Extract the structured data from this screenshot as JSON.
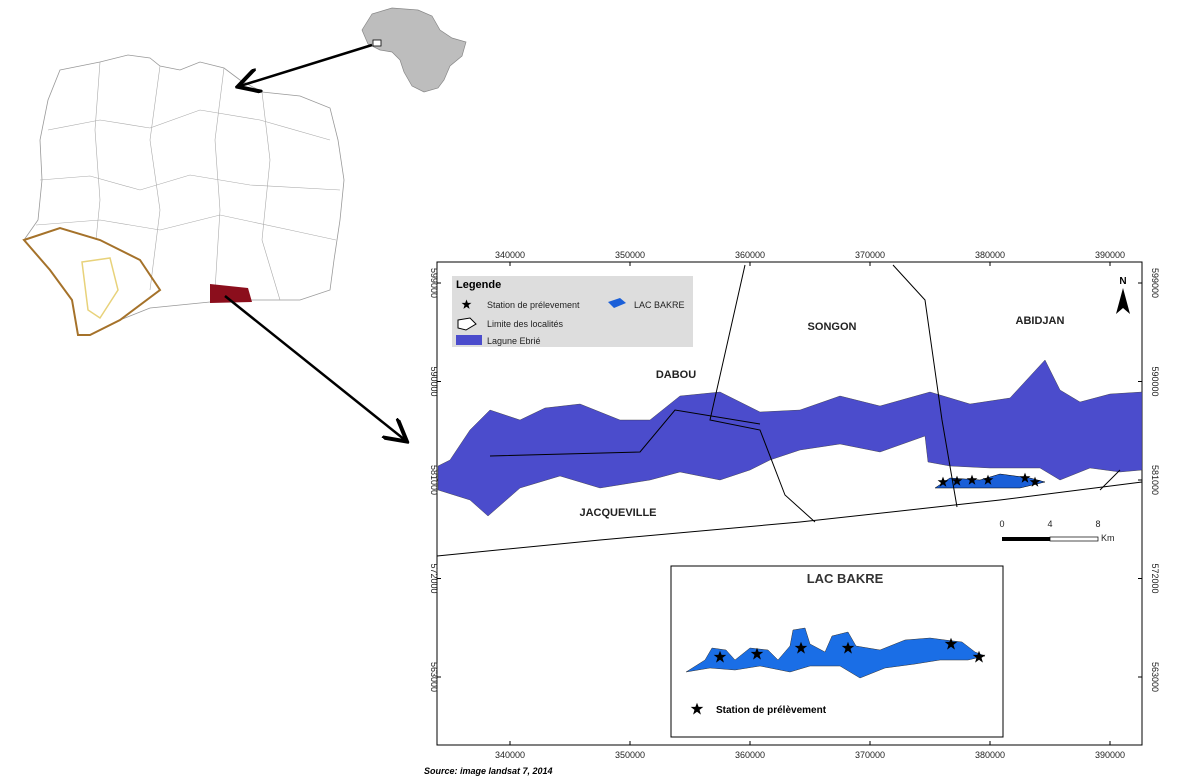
{
  "map_frame": {
    "x_ticks": [
      "340000",
      "350000",
      "360000",
      "370000",
      "380000",
      "390000"
    ],
    "y_ticks": [
      "599000",
      "590000",
      "581000",
      "572000",
      "563000"
    ],
    "north": "N"
  },
  "legend": {
    "title": "Legende",
    "items": [
      "Station de prélevement",
      "LAC BAKRE",
      "Limite des localités",
      "Lagune Ebrié"
    ]
  },
  "places": [
    "DABOU",
    "SONGON",
    "ABIDJAN",
    "JACQUEVILLE"
  ],
  "scale_bar": {
    "labels": [
      "0",
      "4",
      "8"
    ],
    "unit": "Km"
  },
  "inset": {
    "title": "LAC BAKRE",
    "legend": "Station de prélèvement"
  },
  "source": "Source: image landsat 7, 2014"
}
